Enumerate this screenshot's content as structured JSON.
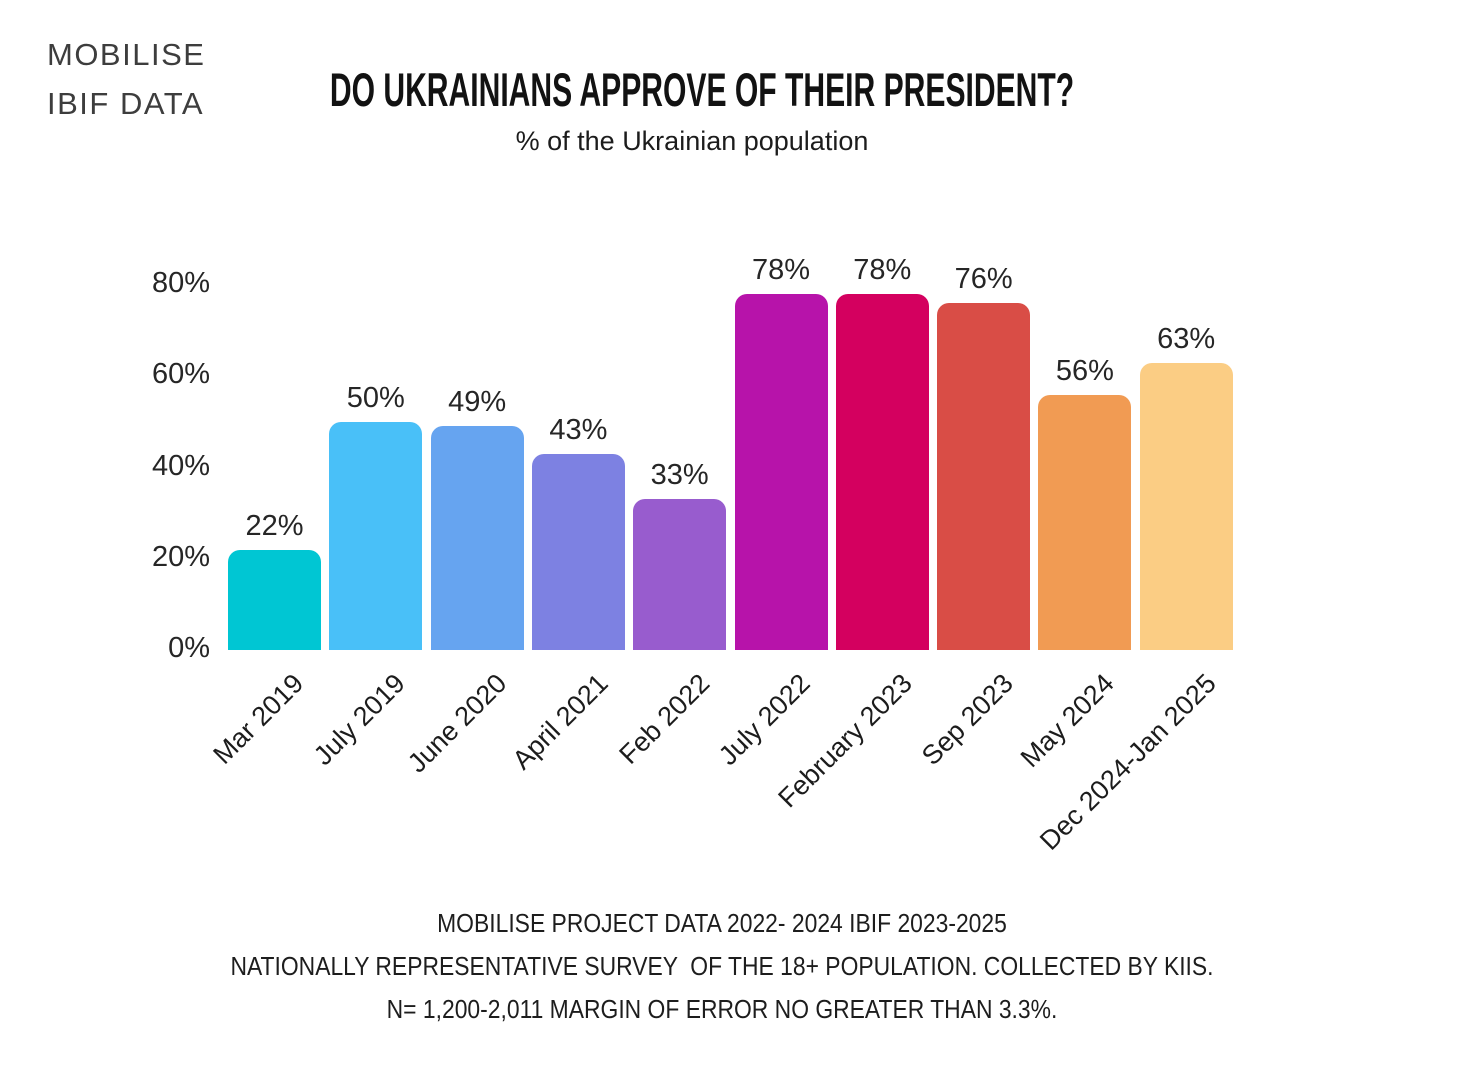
{
  "brand": {
    "line1": "MOBILISE",
    "line2": "IBIF DATA"
  },
  "header": {
    "title": "DO UKRAINIANS APPROVE OF THEIR PRESIDENT?",
    "subtitle": "% of the Ukrainian population"
  },
  "chart_data": {
    "type": "bar",
    "title": "DO UKRAINIANS APPROVE OF THEIR PRESIDENT?",
    "subtitle": "% of the Ukrainian population",
    "categories": [
      "Mar 2019",
      "July 2019",
      "June 2020",
      "April 2021",
      "Feb 2022",
      "July 2022",
      "February 2023",
      "Sep 2023",
      "May 2024",
      "Dec 2024-Jan 2025"
    ],
    "values": [
      22,
      50,
      49,
      43,
      33,
      78,
      78,
      76,
      56,
      63
    ],
    "data_labels": [
      "22%",
      "50%",
      "49%",
      "43%",
      "33%",
      "78%",
      "78%",
      "76%",
      "56%",
      "63%"
    ],
    "bar_colors": [
      "#00c6d3",
      "#49c0f8",
      "#66a4f0",
      "#7d81e2",
      "#985cce",
      "#b713aa",
      "#d4005f",
      "#d94d46",
      "#f19b53",
      "#fbcd84"
    ],
    "yticks": [
      "0%",
      "20%",
      "40%",
      "60%",
      "80%"
    ],
    "ytick_values": [
      0,
      20,
      40,
      60,
      80
    ],
    "ylim": [
      0,
      80
    ],
    "xlabel": "",
    "ylabel": "",
    "grid": false,
    "legend": false
  },
  "footer": {
    "line1": "MOBILISE PROJECT DATA 2022- 2024 IBIF 2023-2025",
    "line2": "NATIONALLY REPRESENTATIVE SURVEY  OF THE 18+ POPULATION. COLLECTED BY KIIS.",
    "line3": "N= 1,200-2,011 MARGIN OF ERROR NO GREATER THAN 3.3%."
  }
}
